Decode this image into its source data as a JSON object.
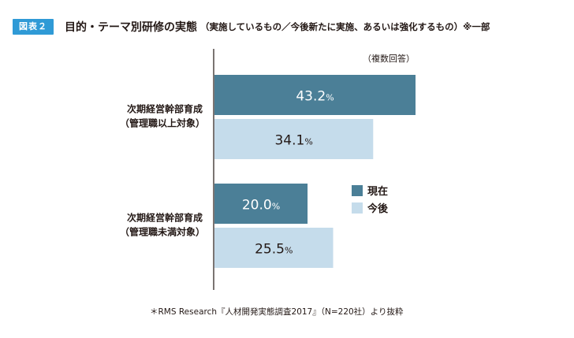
{
  "header": {
    "figure_label": "図表２",
    "title": "目的・テーマ別研修の実態",
    "subtitle": "（実施しているもの／今後新たに実施、あるいは強化するもの）※一部"
  },
  "note": "（複数回答）",
  "source": "＊RMS Research『人材開発実態調査2017』（N=220社）より抜粋",
  "colors": {
    "current": "#4b7f97",
    "future": "#c5dceb",
    "badge": "#2f9ad6",
    "axis": "#231815"
  },
  "chart_data": {
    "type": "bar",
    "orientation": "horizontal",
    "categories": [
      {
        "line1": "次期経営幹部育成",
        "line2": "（管理職以上対象）"
      },
      {
        "line1": "次期経営幹部育成",
        "line2": "（管理職未満対象）"
      }
    ],
    "series": [
      {
        "name": "現在",
        "values": [
          43.2,
          20.0
        ],
        "labels": [
          "43.2",
          "20.0"
        ]
      },
      {
        "name": "今後",
        "values": [
          34.1,
          25.5
        ],
        "labels": [
          "34.1",
          "25.5"
        ]
      }
    ],
    "value_suffix": "%",
    "xlim": [
      0,
      43.2
    ],
    "legend_position": "right-center",
    "grid": false
  }
}
